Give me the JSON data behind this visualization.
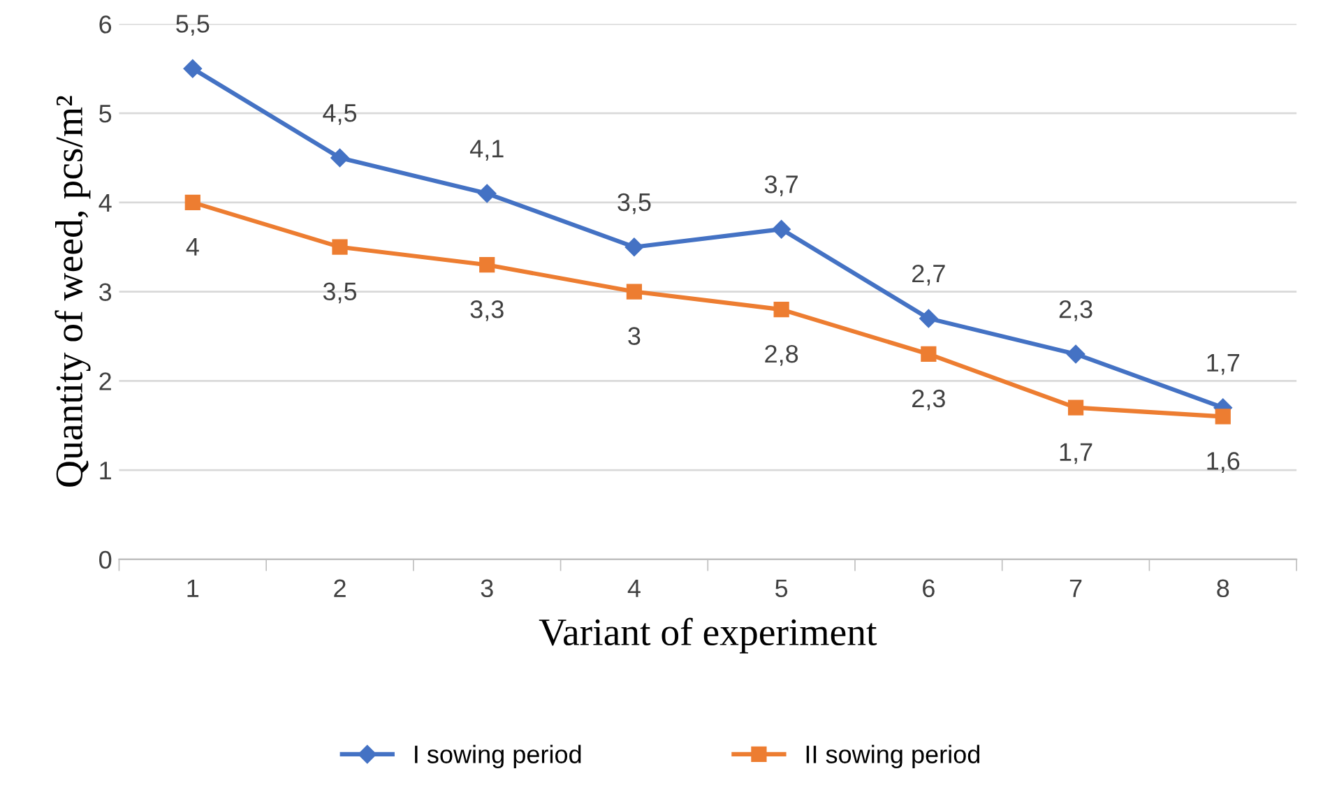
{
  "chart_data": {
    "type": "line",
    "xlabel": "Variant of experiment",
    "ylabel": "Quantity of weed, pcs/m²",
    "categories": [
      "1",
      "2",
      "3",
      "4",
      "5",
      "6",
      "7",
      "8"
    ],
    "series": [
      {
        "name": "I sowing period",
        "color": "#4472c4",
        "marker": "diamond",
        "values": [
          5.5,
          4.5,
          4.1,
          3.5,
          3.7,
          2.7,
          2.3,
          1.7
        ],
        "value_labels": [
          "5,5",
          "4,5",
          "4,1",
          "3,5",
          "3,7",
          "2,7",
          "2,3",
          "1,7"
        ]
      },
      {
        "name": "II sowing period",
        "color": "#ed7d31",
        "marker": "square",
        "values": [
          4,
          3.5,
          3.3,
          3,
          2.8,
          2.3,
          1.7,
          1.6
        ],
        "value_labels": [
          "4",
          "3,5",
          "3,3",
          "3",
          "2,8",
          "2,3",
          "1,7",
          "1,6"
        ]
      }
    ],
    "ylim": [
      0,
      6
    ],
    "yticks": [
      0,
      1,
      2,
      3,
      4,
      5,
      6
    ],
    "grid": "y",
    "legend": "bottom",
    "line_style": "solid"
  }
}
